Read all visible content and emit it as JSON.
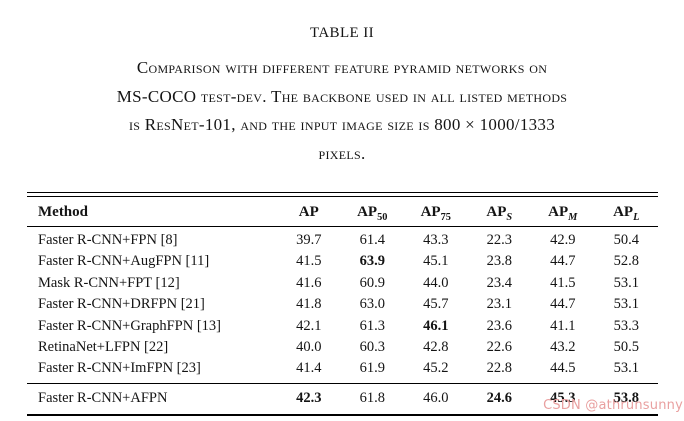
{
  "caption": {
    "title": "TABLE II",
    "lines": [
      "Comparison with different feature pyramid networks on",
      "MS-COCO test-dev. The backbone used in all listed methods",
      "is ResNet-101, and the input image size is 800 × 1000/1333",
      "pixels."
    ]
  },
  "table": {
    "headers": {
      "method": "Method",
      "ap": "AP",
      "ap50": {
        "base": "AP",
        "sub": "50"
      },
      "ap75": {
        "base": "AP",
        "sub": "75"
      },
      "aps": {
        "base": "AP",
        "sub": "S"
      },
      "apm": {
        "base": "AP",
        "sub": "M"
      },
      "apl": {
        "base": "AP",
        "sub": "L"
      }
    },
    "rows": [
      {
        "method": "Faster R-CNN+FPN [8]",
        "values": [
          "39.7",
          "61.4",
          "43.3",
          "22.3",
          "42.9",
          "50.4"
        ],
        "bold": [
          "",
          "",
          "",
          "",
          "",
          ""
        ]
      },
      {
        "method": "Faster R-CNN+AugFPN [11]",
        "values": [
          "41.5",
          "63.9",
          "45.1",
          "23.8",
          "44.7",
          "52.8"
        ],
        "bold": [
          "",
          "b",
          "",
          "",
          "",
          ""
        ]
      },
      {
        "method": "Mask R-CNN+FPT [12]",
        "values": [
          "41.6",
          "60.9",
          "44.0",
          "23.4",
          "41.5",
          "53.1"
        ],
        "bold": [
          "",
          "",
          "",
          "",
          "",
          ""
        ]
      },
      {
        "method": "Faster R-CNN+DRFPN [21]",
        "values": [
          "41.8",
          "63.0",
          "45.7",
          "23.1",
          "44.7",
          "53.1"
        ],
        "bold": [
          "",
          "",
          "",
          "",
          "",
          ""
        ]
      },
      {
        "method": "Faster R-CNN+GraphFPN [13]",
        "values": [
          "42.1",
          "61.3",
          "46.1",
          "23.6",
          "41.1",
          "53.3"
        ],
        "bold": [
          "",
          "",
          "b",
          "",
          "",
          ""
        ]
      },
      {
        "method": "RetinaNet+LFPN [22]",
        "values": [
          "40.0",
          "60.3",
          "42.8",
          "22.6",
          "43.2",
          "50.5"
        ],
        "bold": [
          "",
          "",
          "",
          "",
          "",
          ""
        ]
      },
      {
        "method": "Faster R-CNN+ImFPN [23]",
        "values": [
          "41.4",
          "61.9",
          "45.2",
          "22.8",
          "44.5",
          "53.1"
        ],
        "bold": [
          "",
          "",
          "",
          "",
          "",
          ""
        ]
      }
    ],
    "final_row": {
      "method": "Faster R-CNN+AFPN",
      "values": [
        "42.3",
        "61.8",
        "46.0",
        "24.6",
        "45.3",
        "53.8"
      ],
      "bold": [
        "b",
        "",
        "",
        "b",
        "b",
        "b"
      ]
    }
  },
  "watermark": {
    "text": "CSDN @athrunsunny",
    "color": "#e9a0a0"
  }
}
